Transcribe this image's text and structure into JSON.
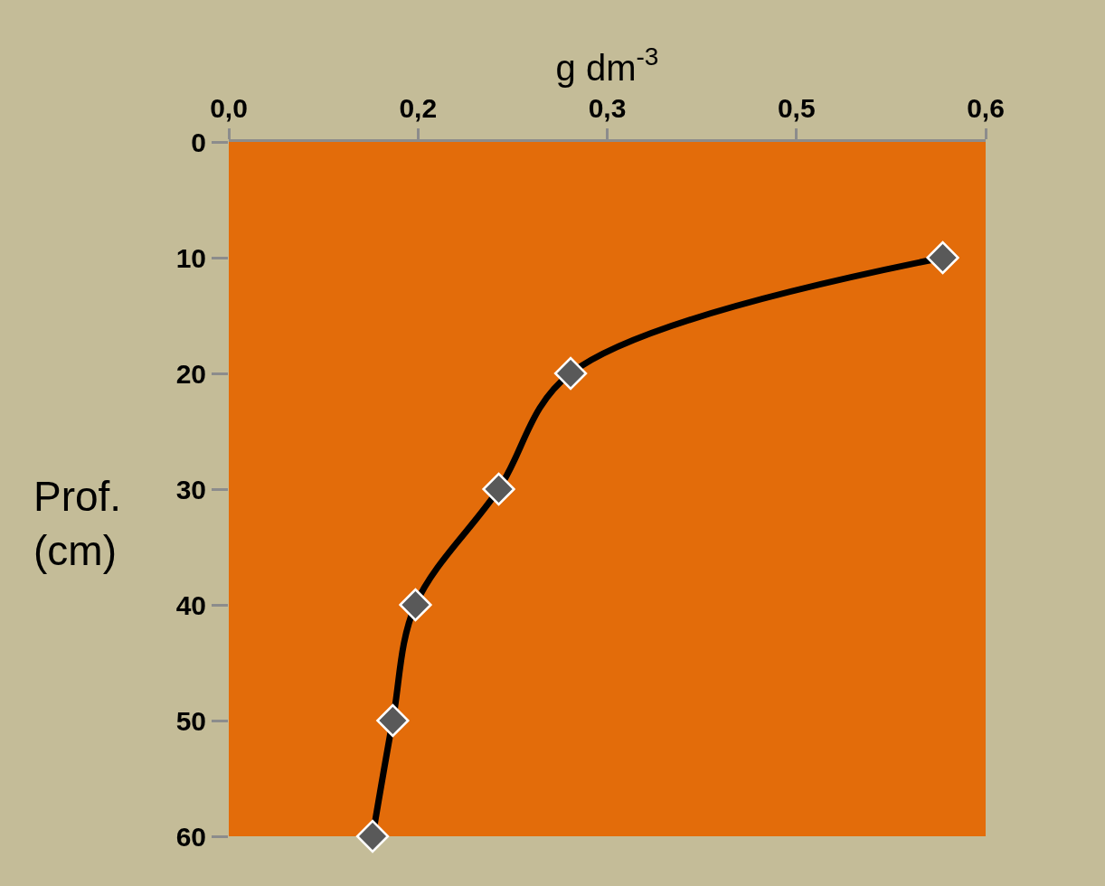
{
  "chart_data": {
    "type": "line",
    "xlabel": "g dm$^{-3}$",
    "ylabel": "Prof.\n(cm)",
    "series": [
      {
        "color": "#000000",
        "colors": [
          "#595959",
          "#595959",
          "#595959",
          "#595959",
          "#595959",
          "#595959"
        ],
        "x": [
          0.566,
          0.271,
          0.214,
          0.148,
          0.13,
          0.114
        ],
        "values": [
          10,
          20,
          30,
          40,
          50,
          60
        ]
      }
    ],
    "xlim": [
      0,
      0.6
    ],
    "xticks": [
      {
        "value": 0,
        "label": "0,0"
      },
      {
        "value": 0.15,
        "label": "0,2"
      },
      {
        "value": 0.3,
        "label": "0,3"
      },
      {
        "value": 0.45,
        "label": "0,5"
      },
      {
        "value": 0.6,
        "label": "0,6"
      }
    ],
    "ylim": [
      60,
      0
    ],
    "yticks": [
      0,
      10,
      20,
      30,
      40,
      50,
      60
    ],
    "grid": false,
    "legend": false,
    "marker": "diamond",
    "line_style": "solid"
  }
}
